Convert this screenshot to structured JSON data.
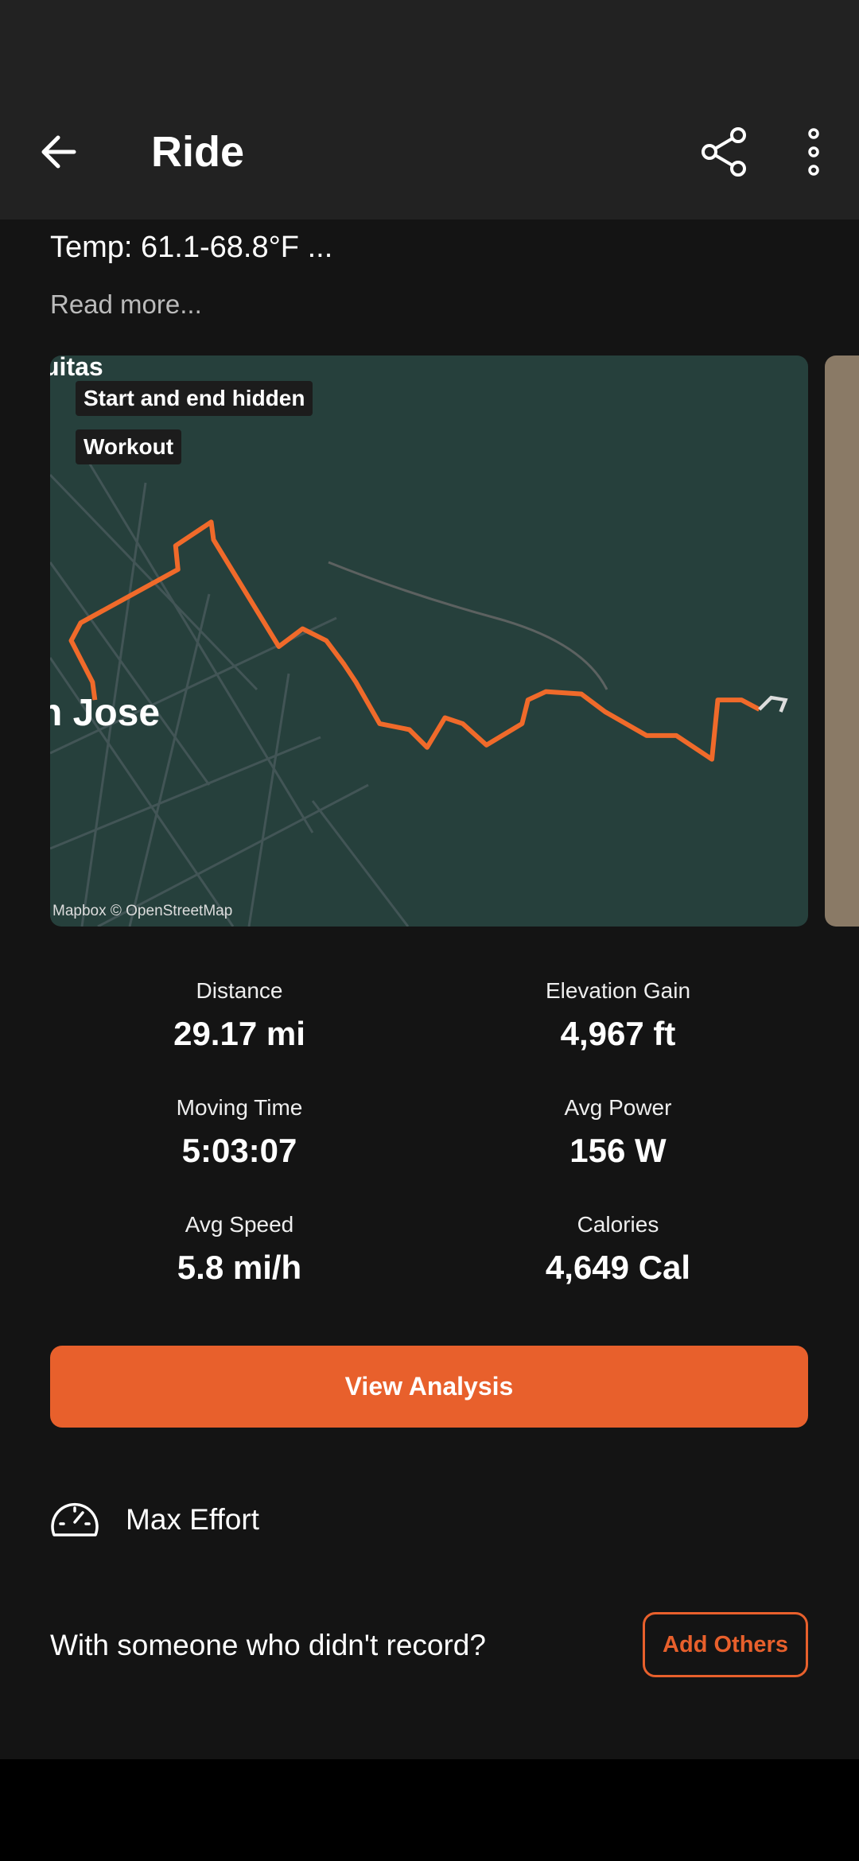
{
  "header": {
    "title": "Ride"
  },
  "description": {
    "temp": "Temp: 61.1-68.8°F  ...",
    "read_more": "Read more..."
  },
  "map": {
    "tags": [
      "Start and end hidden",
      "Workout"
    ],
    "place_top": "uitas",
    "place_main": "n Jose",
    "attribution": "Mapbox © OpenStreetMap"
  },
  "stats": [
    {
      "label": "Distance",
      "value": "29.17 mi"
    },
    {
      "label": "Elevation Gain",
      "value": "4,967 ft"
    },
    {
      "label": "Moving Time",
      "value": "5:03:07"
    },
    {
      "label": "Avg Power",
      "value": "156 W"
    },
    {
      "label": "Avg Speed",
      "value": "5.8 mi/h"
    },
    {
      "label": "Calories",
      "value": "4,649 Cal"
    }
  ],
  "buttons": {
    "analysis": "View Analysis",
    "add_others": "Add Others"
  },
  "effort": "Max Effort",
  "prompt": "With someone who didn't record?"
}
